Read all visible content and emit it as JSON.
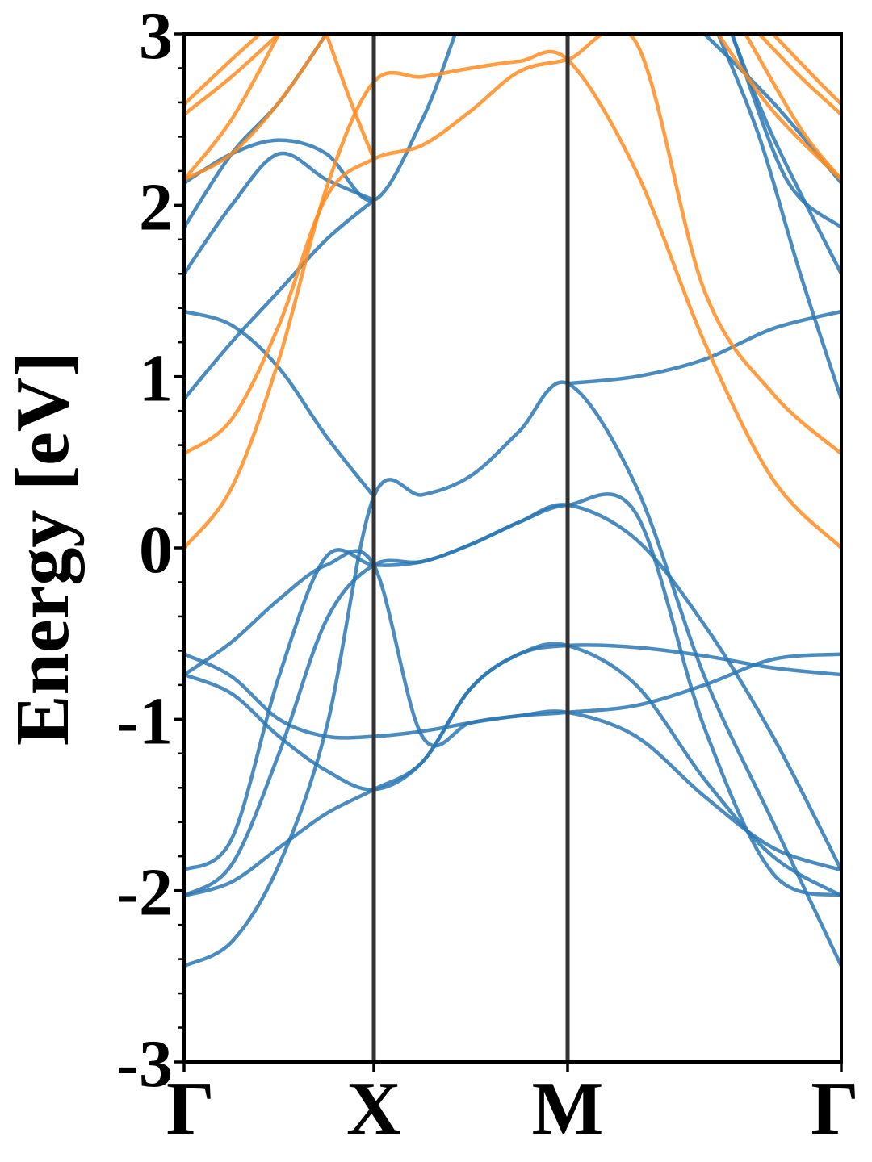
{
  "chart_data": {
    "type": "line",
    "title": "",
    "ylabel": "Energy [eV]",
    "xlabel": "",
    "ylim": [
      -3,
      3
    ],
    "yticks": [
      "3",
      "2",
      "1",
      "0",
      "-1",
      "-2",
      "-3"
    ],
    "xticks": [
      "Γ",
      "X",
      "M",
      "Γ"
    ],
    "path_positions": [
      0,
      1,
      2,
      3
    ],
    "grid": false,
    "colors": {
      "valence": "#2a78b4",
      "conduction": "#ff8c1e",
      "divider": "#333333"
    },
    "series": [
      {
        "group": "valence",
        "points": [
          [
            0,
            -2.44
          ],
          [
            0.25,
            -2.3
          ],
          [
            0.5,
            -1.85
          ],
          [
            0.75,
            -1.05
          ],
          [
            1,
            0.3
          ],
          [
            1.25,
            0.31
          ],
          [
            1.5,
            0.42
          ],
          [
            1.75,
            0.68
          ],
          [
            2,
            0.96
          ],
          [
            2.25,
            0.36
          ],
          [
            2.5,
            -0.75
          ],
          [
            2.75,
            -1.6
          ],
          [
            3,
            -2.44
          ]
        ]
      },
      {
        "group": "valence",
        "points": [
          [
            0,
            -2.03
          ],
          [
            0.25,
            -1.85
          ],
          [
            0.5,
            -1.2
          ],
          [
            0.75,
            -0.42
          ],
          [
            1,
            -0.1
          ],
          [
            1.25,
            -0.08
          ],
          [
            1.5,
            0.02
          ],
          [
            1.75,
            0.15
          ],
          [
            2,
            0.25
          ],
          [
            2.25,
            0.2
          ],
          [
            2.5,
            -1.05
          ],
          [
            2.75,
            -1.9
          ],
          [
            3,
            -2.03
          ]
        ]
      },
      {
        "group": "valence",
        "points": [
          [
            0,
            -1.88
          ],
          [
            0.25,
            -1.7
          ],
          [
            0.5,
            -0.75
          ],
          [
            0.75,
            -0.05
          ],
          [
            1,
            -0.1
          ],
          [
            1.25,
            -0.08
          ],
          [
            1.5,
            0.02
          ],
          [
            1.75,
            0.15
          ],
          [
            2,
            0.25
          ],
          [
            2.25,
            0.05
          ],
          [
            2.5,
            -0.45
          ],
          [
            2.75,
            -1.1
          ],
          [
            3,
            -1.88
          ]
        ]
      },
      {
        "group": "valence",
        "points": [
          [
            0,
            -0.74
          ],
          [
            0.25,
            -0.85
          ],
          [
            0.5,
            -1.1
          ],
          [
            0.75,
            -1.3
          ],
          [
            1,
            -1.41
          ],
          [
            1.25,
            -1.25
          ],
          [
            1.5,
            -0.82
          ],
          [
            1.75,
            -0.62
          ],
          [
            2,
            -0.57
          ],
          [
            2.25,
            -0.58
          ],
          [
            2.5,
            -0.63
          ],
          [
            2.75,
            -0.7
          ],
          [
            3,
            -0.74
          ]
        ]
      },
      {
        "group": "valence",
        "points": [
          [
            0,
            -0.62
          ],
          [
            0.25,
            -0.75
          ],
          [
            0.5,
            -1.0
          ],
          [
            0.75,
            -1.1
          ],
          [
            1,
            -1.1
          ],
          [
            1.25,
            -1.07
          ],
          [
            1.5,
            -1.02
          ],
          [
            1.75,
            -0.98
          ],
          [
            2,
            -0.96
          ],
          [
            2.25,
            -0.92
          ],
          [
            2.5,
            -0.8
          ],
          [
            2.75,
            -0.65
          ],
          [
            3,
            -0.62
          ]
        ]
      },
      {
        "group": "valence",
        "points": [
          [
            0,
            -2.03
          ],
          [
            0.25,
            -1.95
          ],
          [
            0.5,
            -1.75
          ],
          [
            0.75,
            -1.55
          ],
          [
            1,
            -1.41
          ],
          [
            1.25,
            -1.25
          ],
          [
            1.5,
            -0.82
          ],
          [
            1.75,
            -0.62
          ],
          [
            2,
            -0.57
          ],
          [
            2.25,
            -0.8
          ],
          [
            2.5,
            -1.35
          ],
          [
            2.75,
            -1.8
          ],
          [
            3,
            -2.03
          ]
        ]
      },
      {
        "group": "valence",
        "points": [
          [
            0,
            -0.74
          ],
          [
            0.25,
            -0.55
          ],
          [
            0.5,
            -0.3
          ],
          [
            0.75,
            -0.1
          ],
          [
            1,
            -0.1
          ],
          [
            1.25,
            -1.1
          ],
          [
            1.5,
            -1.02
          ],
          [
            1.75,
            -0.98
          ],
          [
            2,
            -0.96
          ],
          [
            2.25,
            -1.1
          ],
          [
            2.5,
            -1.45
          ],
          [
            2.75,
            -1.75
          ],
          [
            3,
            -1.88
          ]
        ]
      },
      {
        "group": "valence",
        "points": [
          [
            0,
            1.38
          ],
          [
            0.25,
            1.3
          ],
          [
            0.5,
            1.05
          ],
          [
            0.75,
            0.65
          ],
          [
            1,
            0.3
          ]
        ]
      },
      {
        "group": "valence",
        "points": [
          [
            2,
            0.96
          ],
          [
            2.25,
            1.0
          ],
          [
            2.5,
            1.1
          ],
          [
            2.75,
            1.28
          ],
          [
            3,
            1.38
          ]
        ]
      },
      {
        "group": "valence",
        "points": [
          [
            0,
            0.87
          ],
          [
            0.25,
            1.2
          ],
          [
            0.5,
            1.5
          ],
          [
            0.75,
            1.8
          ],
          [
            1,
            2.03
          ]
        ]
      },
      {
        "group": "valence",
        "points": [
          [
            0,
            1.6
          ],
          [
            0.25,
            2.0
          ],
          [
            0.5,
            2.3
          ],
          [
            0.75,
            2.15
          ],
          [
            1,
            2.03
          ]
        ]
      },
      {
        "group": "valence",
        "points": [
          [
            0,
            1.87
          ],
          [
            0.25,
            2.3
          ],
          [
            0.5,
            2.6
          ],
          [
            0.75,
            3.0
          ]
        ]
      },
      {
        "group": "valence",
        "points": [
          [
            0,
            2.13
          ],
          [
            0.25,
            2.3
          ],
          [
            0.5,
            2.38
          ],
          [
            0.75,
            2.3
          ],
          [
            1,
            2.03
          ],
          [
            1.25,
            2.5
          ],
          [
            1.42,
            3.0
          ]
        ]
      },
      {
        "group": "valence",
        "points": [
          [
            2.6,
            3.0
          ],
          [
            2.75,
            2.4
          ],
          [
            3,
            1.6
          ]
        ]
      },
      {
        "group": "valence",
        "points": [
          [
            2.5,
            3.0
          ],
          [
            2.75,
            2.6
          ],
          [
            3,
            2.13
          ]
        ]
      },
      {
        "group": "valence",
        "points": [
          [
            2.6,
            3.0
          ],
          [
            2.8,
            2.15
          ],
          [
            3,
            1.87
          ]
        ]
      },
      {
        "group": "valence",
        "points": [
          [
            2.55,
            3.0
          ],
          [
            2.7,
            2.4
          ],
          [
            2.85,
            1.6
          ],
          [
            3,
            0.87
          ]
        ]
      },
      {
        "group": "conduction",
        "points": [
          [
            0,
            0.0
          ],
          [
            0.25,
            0.35
          ],
          [
            0.5,
            1.1
          ],
          [
            0.75,
            2.1
          ],
          [
            1,
            2.72
          ],
          [
            1.25,
            2.75
          ],
          [
            1.5,
            2.8
          ],
          [
            1.75,
            2.84
          ],
          [
            2,
            2.85
          ],
          [
            2.25,
            2.2
          ],
          [
            2.5,
            1.2
          ],
          [
            2.75,
            0.4
          ],
          [
            3,
            0.0
          ]
        ]
      },
      {
        "group": "conduction",
        "points": [
          [
            0,
            0.55
          ],
          [
            0.25,
            0.75
          ],
          [
            0.5,
            1.3
          ],
          [
            0.75,
            2.05
          ],
          [
            1,
            2.27
          ],
          [
            1.25,
            2.35
          ],
          [
            1.5,
            2.55
          ],
          [
            1.75,
            2.78
          ],
          [
            2,
            2.85
          ],
          [
            2.25,
            2.95
          ],
          [
            2.5,
            1.5
          ],
          [
            2.75,
            0.9
          ],
          [
            3,
            0.55
          ]
        ]
      },
      {
        "group": "conduction",
        "points": [
          [
            0,
            2.15
          ],
          [
            0.25,
            2.3
          ],
          [
            0.5,
            2.6
          ],
          [
            0.75,
            3.0
          ]
        ]
      },
      {
        "group": "conduction",
        "points": [
          [
            0,
            2.15
          ],
          [
            0.25,
            2.5
          ],
          [
            0.5,
            3.0
          ]
        ]
      },
      {
        "group": "conduction",
        "points": [
          [
            0,
            2.53
          ],
          [
            0.25,
            2.75
          ],
          [
            0.5,
            3.0
          ]
        ]
      },
      {
        "group": "conduction",
        "points": [
          [
            0,
            2.59
          ],
          [
            0.25,
            2.85
          ],
          [
            0.4,
            3.0
          ]
        ]
      },
      {
        "group": "conduction",
        "points": [
          [
            0.75,
            3.0
          ],
          [
            0.88,
            2.6
          ],
          [
            1,
            2.27
          ]
        ]
      },
      {
        "group": "conduction",
        "points": [
          [
            2.55,
            3.0
          ],
          [
            2.75,
            2.55
          ],
          [
            3,
            2.15
          ]
        ]
      },
      {
        "group": "conduction",
        "points": [
          [
            2.65,
            3.0
          ],
          [
            2.85,
            2.45
          ],
          [
            3,
            2.15
          ]
        ]
      },
      {
        "group": "conduction",
        "points": [
          [
            2.7,
            3.0
          ],
          [
            2.85,
            2.75
          ],
          [
            3,
            2.53
          ]
        ]
      },
      {
        "group": "conduction",
        "points": [
          [
            2.75,
            3.0
          ],
          [
            2.9,
            2.75
          ],
          [
            3,
            2.59
          ]
        ]
      }
    ]
  }
}
